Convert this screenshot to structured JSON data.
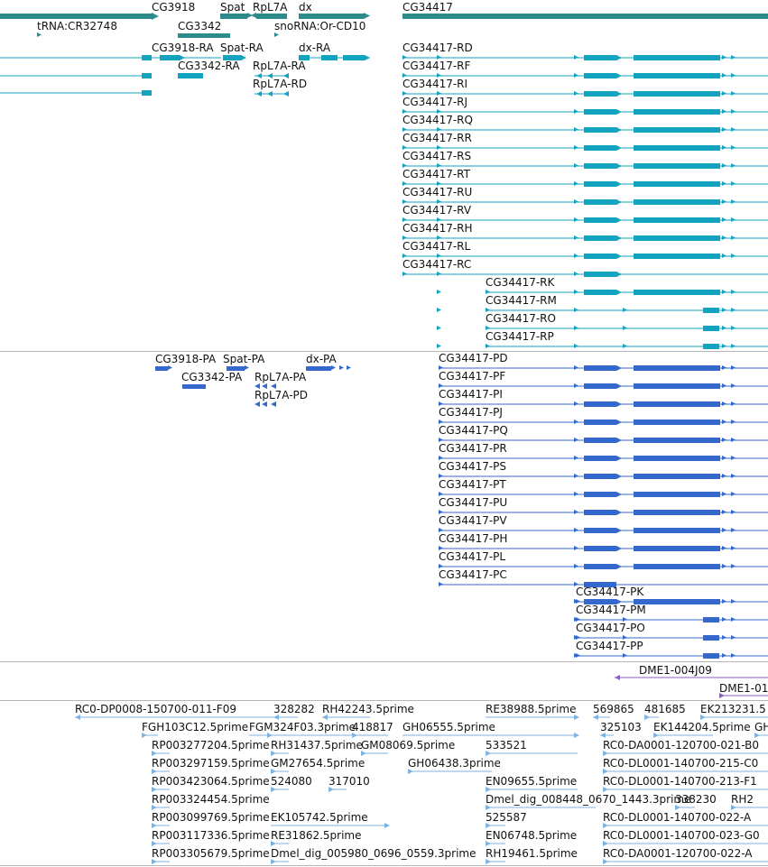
{
  "colors": {
    "gene": "#2e8b8b",
    "transcript": "#12a3bf",
    "protein": "#3568cc",
    "insertion": "#8a5fbf",
    "est": "#7fb2df",
    "divider": "#b5b5b5"
  },
  "tracks": {
    "genes": {
      "features": [
        {
          "label": "CG3918",
          "color": "gene",
          "shape": "arrow-right"
        },
        {
          "label": "Spat",
          "color": "gene",
          "shape": "arrow-right"
        },
        {
          "label": "RpL7A",
          "color": "gene",
          "shape": "arrow-left"
        },
        {
          "label": "dx",
          "color": "gene",
          "shape": "arrow-right"
        },
        {
          "label": "CG34417",
          "color": "gene",
          "shape": "box"
        },
        {
          "label": "tRNA:CR32748",
          "color": "gene",
          "shape": "point"
        },
        {
          "label": "CG3342",
          "color": "gene",
          "shape": "box"
        },
        {
          "label": "snoRNA:Or-CD10",
          "color": "gene",
          "shape": "point"
        }
      ]
    },
    "transcripts": {
      "features": [
        {
          "label": "CG3918-RA",
          "color": "transcript",
          "exons": "left-fragment"
        },
        {
          "label": "Spat-RA",
          "color": "transcript"
        },
        {
          "label": "dx-RA",
          "color": "transcript"
        },
        {
          "label": "CG3342-RA",
          "color": "transcript"
        },
        {
          "label": "RpL7A-RA",
          "color": "transcript"
        },
        {
          "label": "RpL7A-RD",
          "color": "transcript"
        },
        {
          "label": "CG34417-RD",
          "color": "transcript"
        },
        {
          "label": "CG34417-RF",
          "color": "transcript"
        },
        {
          "label": "CG34417-RI",
          "color": "transcript"
        },
        {
          "label": "CG34417-RJ",
          "color": "transcript"
        },
        {
          "label": "CG34417-RQ",
          "color": "transcript"
        },
        {
          "label": "CG34417-RR",
          "color": "transcript"
        },
        {
          "label": "CG34417-RS",
          "color": "transcript"
        },
        {
          "label": "CG34417-RT",
          "color": "transcript"
        },
        {
          "label": "CG34417-RU",
          "color": "transcript"
        },
        {
          "label": "CG34417-RV",
          "color": "transcript"
        },
        {
          "label": "CG34417-RH",
          "color": "transcript"
        },
        {
          "label": "CG34417-RL",
          "color": "transcript"
        },
        {
          "label": "CG34417-RC",
          "color": "transcript"
        },
        {
          "label": "CG34417-RK",
          "color": "transcript"
        },
        {
          "label": "CG34417-RM",
          "color": "transcript"
        },
        {
          "label": "CG34417-RO",
          "color": "transcript"
        },
        {
          "label": "CG34417-RP",
          "color": "transcript"
        }
      ]
    },
    "proteins": {
      "features": [
        {
          "label": "CG3918-PA"
        },
        {
          "label": "Spat-PA"
        },
        {
          "label": "dx-PA"
        },
        {
          "label": "CG3342-PA"
        },
        {
          "label": "RpL7A-PA"
        },
        {
          "label": "RpL7A-PD"
        },
        {
          "label": "CG34417-PD"
        },
        {
          "label": "CG34417-PF"
        },
        {
          "label": "CG34417-PI"
        },
        {
          "label": "CG34417-PJ"
        },
        {
          "label": "CG34417-PQ"
        },
        {
          "label": "CG34417-PR"
        },
        {
          "label": "CG34417-PS"
        },
        {
          "label": "CG34417-PT"
        },
        {
          "label": "CG34417-PU"
        },
        {
          "label": "CG34417-PV"
        },
        {
          "label": "CG34417-PH"
        },
        {
          "label": "CG34417-PL"
        },
        {
          "label": "CG34417-PC"
        },
        {
          "label": "CG34417-PK"
        },
        {
          "label": "CG34417-PM"
        },
        {
          "label": "CG34417-PO"
        },
        {
          "label": "CG34417-PP"
        }
      ]
    },
    "insertions": {
      "features": [
        {
          "label": "DME1-004J09"
        },
        {
          "label": "DME1-01"
        }
      ]
    },
    "ests": {
      "features": [
        {
          "label": "RC0-DP0008-150700-011-F09"
        },
        {
          "label": "328282"
        },
        {
          "label": "RH42243.5prime"
        },
        {
          "label": "RE38988.5prime"
        },
        {
          "label": "569865"
        },
        {
          "label": "481685"
        },
        {
          "label": "EK213231.5"
        },
        {
          "label": "FGH103C12.5prime"
        },
        {
          "label": "FGM324F03.3prime"
        },
        {
          "label": "418817"
        },
        {
          "label": "GH06555.5prime"
        },
        {
          "label": "325103"
        },
        {
          "label": "EK144204.5prime"
        },
        {
          "label": "GH"
        },
        {
          "label": "RP003277204.5prime"
        },
        {
          "label": "RH31437.5prime"
        },
        {
          "label": "GM08069.5prime"
        },
        {
          "label": "533521"
        },
        {
          "label": "RC0-DA0001-120700-021-B0"
        },
        {
          "label": "RP003297159.5prime"
        },
        {
          "label": "GM27654.5prime"
        },
        {
          "label": "GH06438.3prime"
        },
        {
          "label": "RC0-DL0001-140700-215-C0"
        },
        {
          "label": "RP003423064.5prime"
        },
        {
          "label": "524080"
        },
        {
          "label": "317010"
        },
        {
          "label": "EN09655.5prime"
        },
        {
          "label": "RC0-DL0001-140700-213-F1"
        },
        {
          "label": "RP003324454.5prime"
        },
        {
          "label": "Dmel_dig_008448_0670_1443.3prime"
        },
        {
          "label": "338230"
        },
        {
          "label": "RH2"
        },
        {
          "label": "RP003099769.5prime"
        },
        {
          "label": "EK105742.5prime"
        },
        {
          "label": "525587"
        },
        {
          "label": "RC0-DL0001-140700-022-A"
        },
        {
          "label": "RP003117336.5prime"
        },
        {
          "label": "RE31862.5prime"
        },
        {
          "label": "EN06748.5prime"
        },
        {
          "label": "RC0-DL0001-140700-023-G0"
        },
        {
          "label": "RP003305679.5prime"
        },
        {
          "label": "Dmel_dig_005980_0696_0559.3prime"
        },
        {
          "label": "RH19461.5prime"
        },
        {
          "label": "RC0-DA0001-120700-022-A"
        }
      ]
    }
  }
}
